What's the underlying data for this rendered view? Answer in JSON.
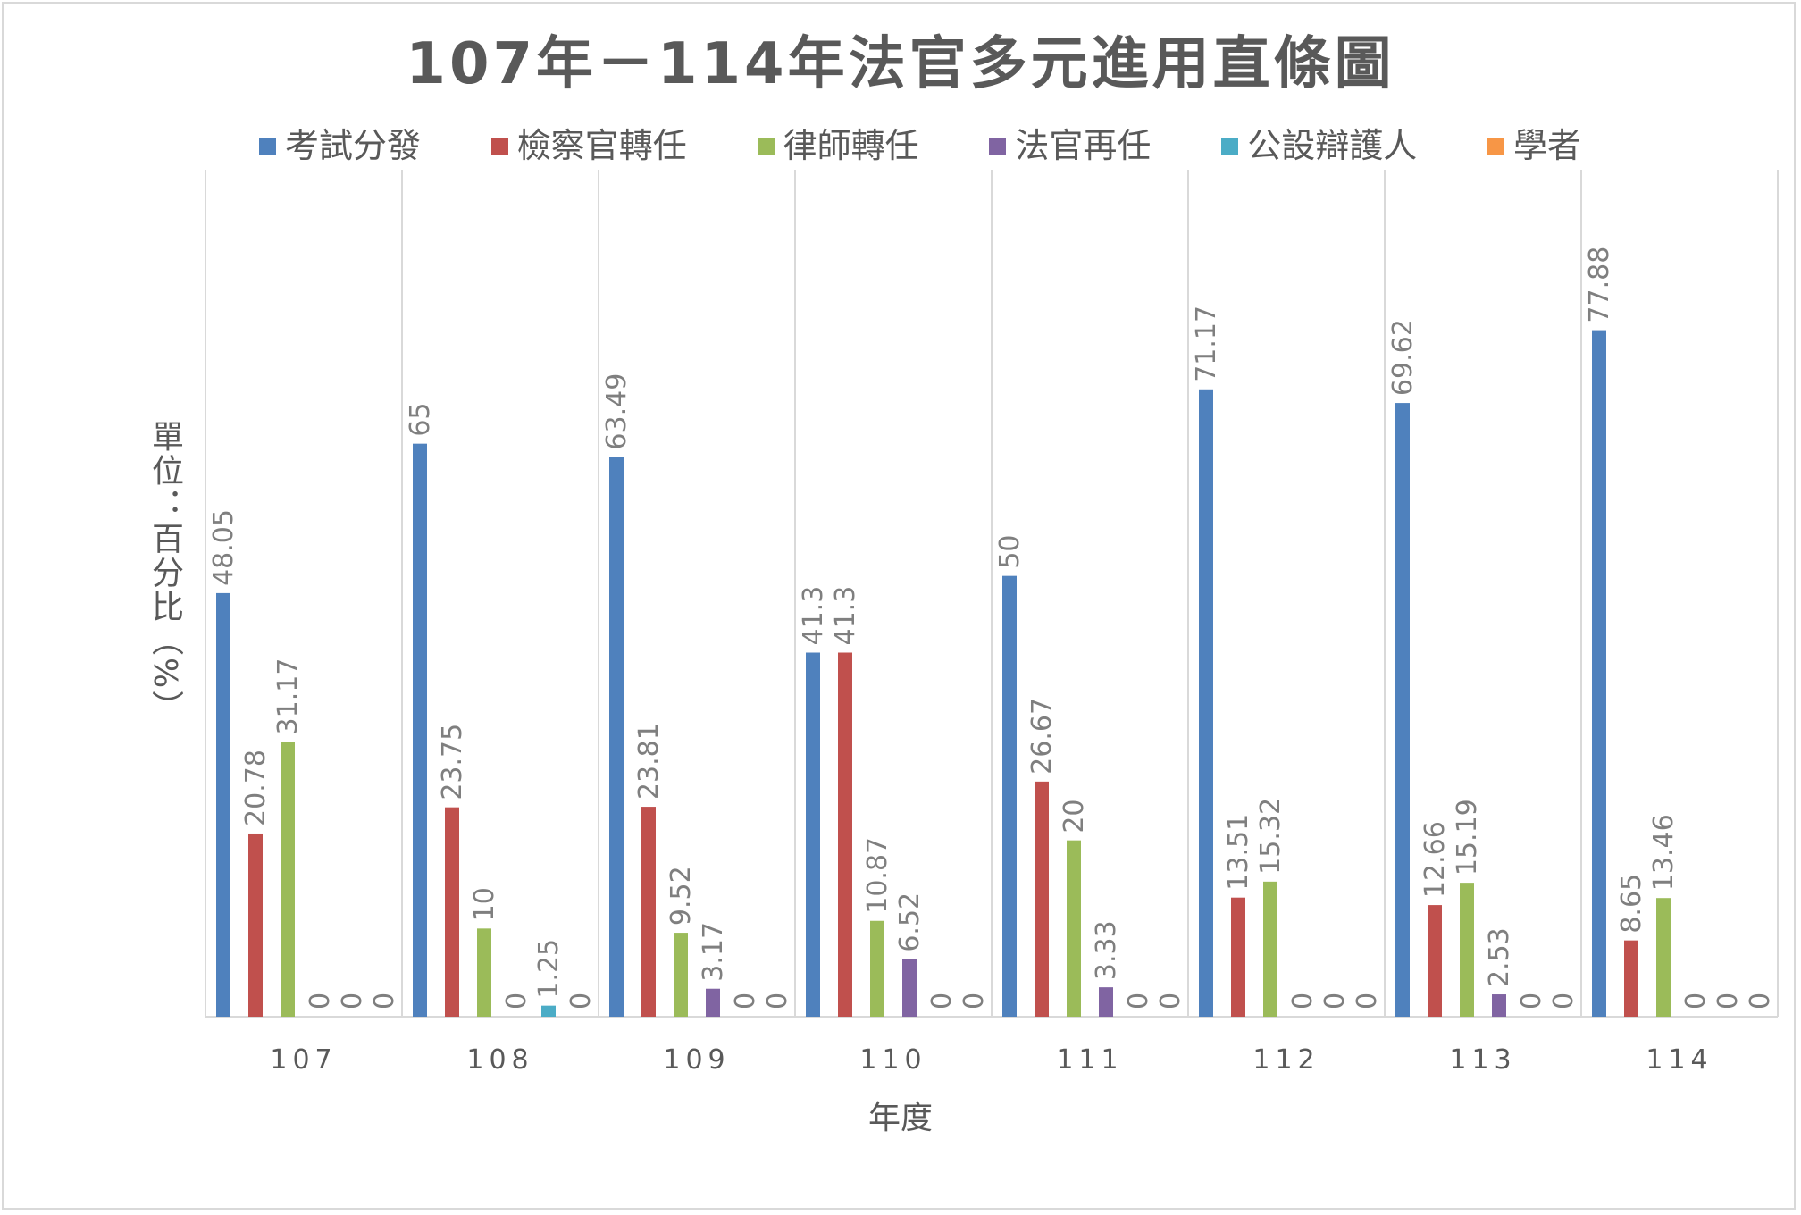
{
  "chart_data": {
    "type": "bar",
    "title": "107年－114年法官多元進用直條圖",
    "xlabel": "年度",
    "ylabel": "單位：百分比（%）",
    "categories": [
      "107",
      "108",
      "109",
      "110",
      "111",
      "112",
      "113",
      "114"
    ],
    "ylim": [
      0,
      90
    ],
    "grid": false,
    "legend": "top",
    "series": [
      {
        "name": "考試分發",
        "color": "#4f81bd",
        "values": [
          48.05,
          65,
          63.49,
          41.3,
          50,
          71.17,
          69.62,
          77.88
        ]
      },
      {
        "name": "檢察官轉任",
        "color": "#c0504d",
        "values": [
          20.78,
          23.75,
          23.81,
          41.3,
          26.67,
          13.51,
          12.66,
          8.65
        ]
      },
      {
        "name": "律師轉任",
        "color": "#9bbb59",
        "values": [
          31.17,
          10,
          9.52,
          10.87,
          20,
          15.32,
          15.19,
          13.46
        ]
      },
      {
        "name": "法官再任",
        "color": "#8064a2",
        "values": [
          0,
          0,
          3.17,
          6.52,
          3.33,
          0,
          2.53,
          0
        ]
      },
      {
        "name": "公設辯護人",
        "color": "#4bacc6",
        "values": [
          0,
          1.25,
          0,
          0,
          0,
          0,
          0,
          0
        ]
      },
      {
        "name": "學者",
        "color": "#f79646",
        "values": [
          0,
          0,
          0,
          0,
          0,
          0,
          0,
          0
        ]
      }
    ]
  }
}
